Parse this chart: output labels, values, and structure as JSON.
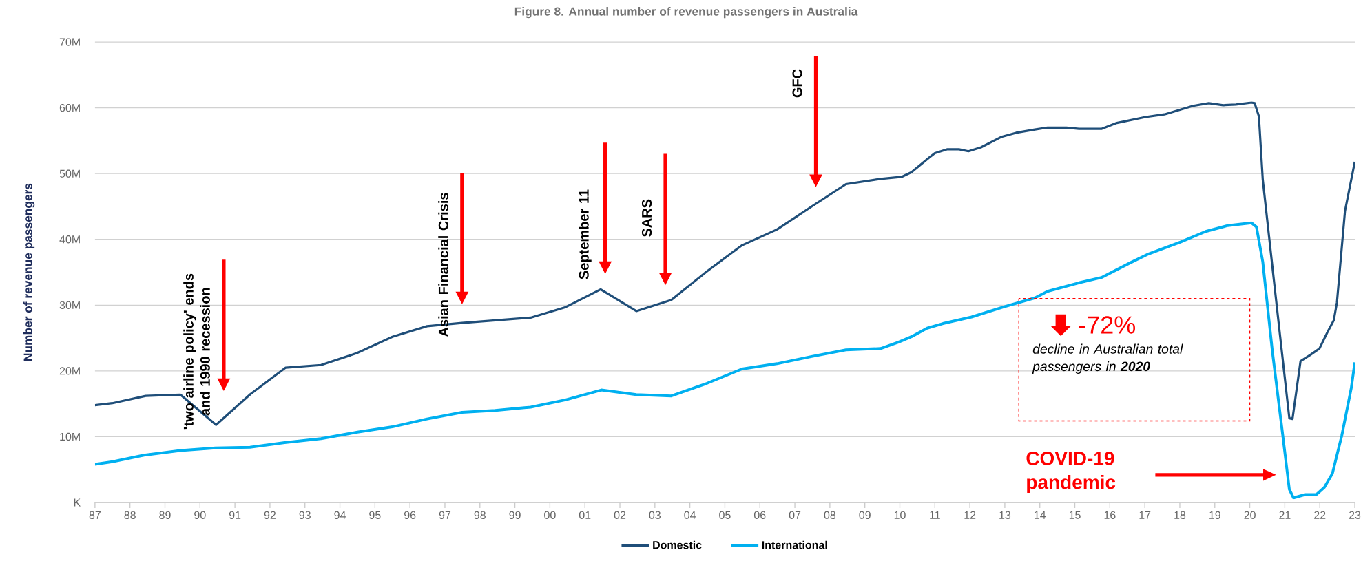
{
  "chart_data": {
    "type": "line",
    "title": "Figure 8. Annual number of revenue passengers in Australia",
    "ylabel": "Number of revenue passengers",
    "xlim": [
      1987,
      2023
    ],
    "ylim": [
      0,
      70
    ],
    "xticks": [
      {
        "value": 1987,
        "label": "87"
      },
      {
        "value": 1988,
        "label": "88"
      },
      {
        "value": 1989,
        "label": "89"
      },
      {
        "value": 1990,
        "label": "90"
      },
      {
        "value": 1991,
        "label": "91"
      },
      {
        "value": 1992,
        "label": "92"
      },
      {
        "value": 1993,
        "label": "93"
      },
      {
        "value": 1994,
        "label": "94"
      },
      {
        "value": 1995,
        "label": "95"
      },
      {
        "value": 1996,
        "label": "96"
      },
      {
        "value": 1997,
        "label": "97"
      },
      {
        "value": 1998,
        "label": "98"
      },
      {
        "value": 1999,
        "label": "99"
      },
      {
        "value": 2000,
        "label": "00"
      },
      {
        "value": 2001,
        "label": "01"
      },
      {
        "value": 2002,
        "label": "02"
      },
      {
        "value": 2003,
        "label": "03"
      },
      {
        "value": 2004,
        "label": "04"
      },
      {
        "value": 2005,
        "label": "05"
      },
      {
        "value": 2006,
        "label": "06"
      },
      {
        "value": 2007,
        "label": "07"
      },
      {
        "value": 2008,
        "label": "08"
      },
      {
        "value": 2009,
        "label": "09"
      },
      {
        "value": 2010,
        "label": "10"
      },
      {
        "value": 2011,
        "label": "11"
      },
      {
        "value": 2012,
        "label": "12"
      },
      {
        "value": 2013,
        "label": "13"
      },
      {
        "value": 2014,
        "label": "14"
      },
      {
        "value": 2015,
        "label": "15"
      },
      {
        "value": 2016,
        "label": "16"
      },
      {
        "value": 2017,
        "label": "17"
      },
      {
        "value": 2018,
        "label": "18"
      },
      {
        "value": 2019,
        "label": "19"
      },
      {
        "value": 2020,
        "label": "20"
      },
      {
        "value": 2021,
        "label": "21"
      },
      {
        "value": 2022,
        "label": "22"
      },
      {
        "value": 2023,
        "label": "23"
      }
    ],
    "yticks": [
      {
        "value": 0,
        "label": "K"
      },
      {
        "value": 10,
        "label": "10M"
      },
      {
        "value": 20,
        "label": "20M"
      },
      {
        "value": 30,
        "label": "30M"
      },
      {
        "value": 40,
        "label": "40M"
      },
      {
        "value": 50,
        "label": "50M"
      },
      {
        "value": 60,
        "label": "60M"
      },
      {
        "value": 70,
        "label": "70M"
      }
    ],
    "grid": "y",
    "legend": "bottom",
    "series": [
      {
        "name": "Domestic",
        "color": "#1f4e79",
        "x": [
          1987.0,
          1987.5,
          1988.45,
          1989.44,
          1990.46,
          1991.45,
          1992.45,
          1993.46,
          1994.48,
          1995.5,
          1996.49,
          1997.49,
          1999.45,
          2000.45,
          2001.45,
          2002.47,
          2003.47,
          2004.48,
          2005.49,
          2006.49,
          2007.48,
          2008.46,
          2009.45,
          2010.05,
          2010.33,
          2010.83,
          2011.0,
          2011.36,
          2011.69,
          2011.96,
          2012.32,
          2012.91,
          2013.32,
          2013.86,
          2014.22,
          2014.76,
          2015.12,
          2015.76,
          2016.2,
          2017.02,
          2017.56,
          2018.38,
          2018.83,
          2019.24,
          2019.6,
          2020.05,
          2020.14,
          2020.26,
          2020.37,
          2020.64,
          2020.87,
          2021.13,
          2021.22,
          2021.45,
          2021.72,
          2021.99,
          2022.21,
          2022.4,
          2022.49,
          2022.72,
          2022.9,
          2023.0
        ],
        "values": [
          14.8,
          15.1,
          16.2,
          16.4,
          11.8,
          16.5,
          20.5,
          20.9,
          22.7,
          25.2,
          26.8,
          27.3,
          28.1,
          29.7,
          32.4,
          29.1,
          30.8,
          35.1,
          39.1,
          41.5,
          45.0,
          48.4,
          49.2,
          49.5,
          50.2,
          52.4,
          53.1,
          53.7,
          53.7,
          53.4,
          54.0,
          55.6,
          56.2,
          56.7,
          57.0,
          57.0,
          56.8,
          56.8,
          57.7,
          58.6,
          59.0,
          60.3,
          60.7,
          60.4,
          60.5,
          60.8,
          60.7,
          58.7,
          49.1,
          36.1,
          25.1,
          12.8,
          12.7,
          21.5,
          22.4,
          23.4,
          25.8,
          27.7,
          30.4,
          44.3,
          49.1,
          51.8
        ]
      },
      {
        "name": "International",
        "color": "#00b0f0",
        "x": [
          1987.0,
          1987.5,
          1988.4,
          1989.44,
          1990.44,
          1991.43,
          1992.42,
          1993.46,
          1994.5,
          1995.5,
          1996.49,
          1997.49,
          1998.44,
          1999.45,
          2000.45,
          2001.47,
          2002.47,
          2003.47,
          2004.48,
          2005.49,
          2006.49,
          2007.48,
          2008.46,
          2009.45,
          2009.97,
          2010.33,
          2010.78,
          2011.23,
          2012.05,
          2012.95,
          2013.86,
          2014.22,
          2015.12,
          2015.76,
          2016.57,
          2017.11,
          2018.02,
          2018.74,
          2019.37,
          2020.05,
          2020.19,
          2020.37,
          2020.64,
          2020.91,
          2021.13,
          2021.25,
          2021.58,
          2021.9,
          2022.13,
          2022.36,
          2022.63,
          2022.9,
          2023.0
        ],
        "values": [
          5.8,
          6.2,
          7.2,
          7.9,
          8.3,
          8.4,
          9.1,
          9.7,
          10.7,
          11.5,
          12.7,
          13.7,
          14.0,
          14.5,
          15.6,
          17.1,
          16.4,
          16.2,
          18.1,
          20.3,
          21.1,
          22.2,
          23.2,
          23.4,
          24.4,
          25.2,
          26.5,
          27.2,
          28.2,
          29.7,
          31.1,
          32.1,
          33.4,
          34.2,
          36.4,
          37.8,
          39.6,
          41.2,
          42.1,
          42.5,
          41.9,
          36.6,
          23.2,
          11.6,
          2.0,
          0.7,
          1.2,
          1.2,
          2.3,
          4.4,
          10.2,
          17.4,
          21.3
        ]
      }
    ],
    "annotations": [
      "'two airline policy' ends and 1990 recession",
      "Asian Financial Crisis",
      "September 11",
      "SARS",
      "GFC",
      "-72%",
      "decline in Australian total passengers in **2020**",
      "COVID-19 pandemic"
    ]
  }
}
